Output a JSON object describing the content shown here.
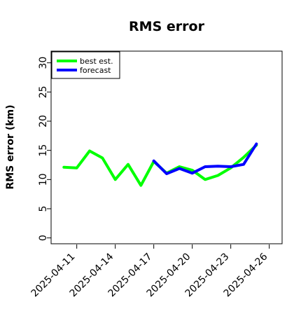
{
  "chart_data": {
    "type": "line",
    "title": "RMS error",
    "xlabel": "",
    "ylabel": "RMS error (km)",
    "x_ticks": [
      "2025-04-11",
      "2025-04-14",
      "2025-04-17",
      "2025-04-20",
      "2025-04-23",
      "2025-04-26"
    ],
    "x_tick_colors": [
      "#000000",
      "#000000",
      "#228b22",
      "#000000",
      "#000000",
      "#000000"
    ],
    "y_ticks": [
      0,
      5,
      10,
      15,
      20,
      25,
      30
    ],
    "xlim": [
      "2025-04-09",
      "2025-04-27"
    ],
    "ylim": [
      -1,
      32
    ],
    "grid": false,
    "legend_position": "top-left",
    "series": [
      {
        "name": "best est.",
        "color": "#00ff00",
        "points": [
          {
            "x": "2025-04-10",
            "y": 12.1
          },
          {
            "x": "2025-04-11",
            "y": 12.0
          },
          {
            "x": "2025-04-12",
            "y": 14.9
          },
          {
            "x": "2025-04-13",
            "y": 13.7
          },
          {
            "x": "2025-04-14",
            "y": 10.0
          },
          {
            "x": "2025-04-15",
            "y": 12.6
          },
          {
            "x": "2025-04-16",
            "y": 9.0
          },
          {
            "x": "2025-04-17",
            "y": 13.1
          },
          {
            "x": "2025-04-18",
            "y": 11.1
          },
          {
            "x": "2025-04-19",
            "y": 12.2
          },
          {
            "x": "2025-04-20",
            "y": 11.6
          },
          {
            "x": "2025-04-21",
            "y": 10.0
          },
          {
            "x": "2025-04-22",
            "y": 10.7
          },
          {
            "x": "2025-04-23",
            "y": 12.0
          },
          {
            "x": "2025-04-24",
            "y": 13.8
          },
          {
            "x": "2025-04-25",
            "y": 15.9
          }
        ]
      },
      {
        "name": "forecast",
        "color": "#0000ff",
        "points": [
          {
            "x": "2025-04-17",
            "y": 13.2
          },
          {
            "x": "2025-04-18",
            "y": 11.0
          },
          {
            "x": "2025-04-19",
            "y": 11.9
          },
          {
            "x": "2025-04-20",
            "y": 11.1
          },
          {
            "x": "2025-04-21",
            "y": 12.2
          },
          {
            "x": "2025-04-22",
            "y": 12.3
          },
          {
            "x": "2025-04-23",
            "y": 12.2
          },
          {
            "x": "2025-04-24",
            "y": 12.6
          },
          {
            "x": "2025-04-25",
            "y": 16.1
          }
        ]
      }
    ]
  }
}
